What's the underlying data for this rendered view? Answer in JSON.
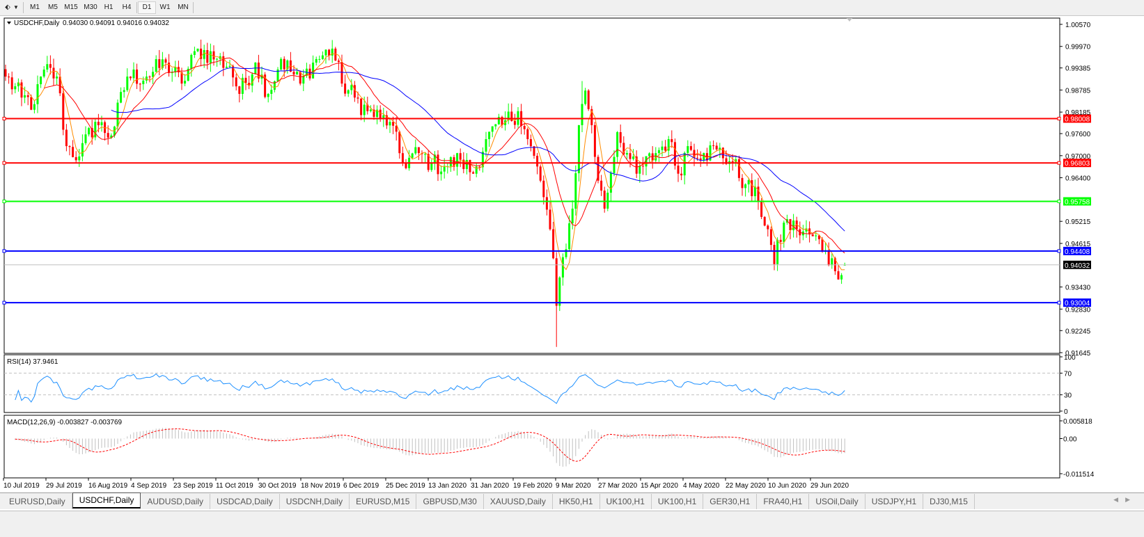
{
  "toolbar": {
    "timeframes": [
      {
        "label": "M1"
      },
      {
        "label": "M5"
      },
      {
        "label": "M15"
      },
      {
        "label": "M30"
      },
      {
        "label": "H1"
      },
      {
        "label": "H4"
      },
      {
        "label": "D1",
        "active": true
      },
      {
        "label": "W1"
      },
      {
        "label": "MN"
      }
    ]
  },
  "chart": {
    "symbol_header": "USDCHF,Daily",
    "ohlc_header": "0.94030 0.94091 0.94016 0.94032",
    "last": {
      "open": 0.9403,
      "high": 0.94091,
      "low": 0.94016,
      "close": 0.94032
    },
    "price_axis_labels": [
      "1.00570",
      "0.99970",
      "0.99385",
      "0.98785",
      "0.98185",
      "0.97600",
      "0.97000",
      "0.96400",
      "0.95215",
      "0.94615",
      "0.93430",
      "0.92830",
      "0.92245",
      "0.91645"
    ],
    "price_range": [
      0.91645,
      1.0057
    ],
    "current_price_label": "0.94032",
    "horizontal_lines": [
      {
        "price": 0.98008,
        "label": "0.98008",
        "color": "#ff0000"
      },
      {
        "price": 0.96803,
        "label": "0.96803",
        "color": "#ff0000"
      },
      {
        "price": 0.95758,
        "label": "0.95758",
        "color": "#00ff00"
      },
      {
        "price": 0.94408,
        "label": "0.94408",
        "color": "#0000ff"
      },
      {
        "price": 0.93004,
        "label": "0.93004",
        "color": "#0000ff"
      }
    ],
    "colors": {
      "bull": "#00ff00",
      "bear": "#ff0000",
      "ma_fast": "#ff8c00",
      "ma_mid": "#ff0000",
      "ma_slow": "#0000ff",
      "rsi": "#1e90ff",
      "macd_hist": "#c0c0c0",
      "macd_signal": "#ff0000"
    },
    "close_path": [
      [
        0,
        0.9915
      ],
      [
        5,
        0.9858
      ],
      [
        9,
        0.984
      ],
      [
        12,
        0.9934
      ],
      [
        16,
        0.9915
      ],
      [
        19,
        0.9726
      ],
      [
        23,
        0.9698
      ],
      [
        28,
        0.9792
      ],
      [
        33,
        0.9755
      ],
      [
        38,
        0.9915
      ],
      [
        44,
        0.9915
      ],
      [
        50,
        0.9953
      ],
      [
        55,
        0.9896
      ],
      [
        60,
        0.9991
      ],
      [
        66,
        0.9963
      ],
      [
        70,
        0.9944
      ],
      [
        73,
        0.9868
      ],
      [
        78,
        0.9953
      ],
      [
        82,
        0.9868
      ],
      [
        86,
        0.9963
      ],
      [
        92,
        0.9896
      ],
      [
        96,
        0.9953
      ],
      [
        102,
        0.9991
      ],
      [
        105,
        0.9896
      ],
      [
        109,
        0.9858
      ],
      [
        113,
        0.9821
      ],
      [
        117,
        0.9802
      ],
      [
        120,
        0.9792
      ],
      [
        124,
        0.9679
      ],
      [
        129,
        0.9707
      ],
      [
        133,
        0.9679
      ],
      [
        137,
        0.967
      ],
      [
        142,
        0.9689
      ],
      [
        146,
        0.9651
      ],
      [
        150,
        0.9745
      ],
      [
        155,
        0.9783
      ],
      [
        160,
        0.9821
      ],
      [
        163,
        0.9745
      ],
      [
        167,
        0.9632
      ],
      [
        170,
        0.95
      ],
      [
        172,
        0.9292
      ],
      [
        174,
        0.9424
      ],
      [
        177,
        0.9556
      ],
      [
        179,
        0.9783
      ],
      [
        181,
        0.9877
      ],
      [
        183,
        0.9783
      ],
      [
        185,
        0.9632
      ],
      [
        187,
        0.9556
      ],
      [
        191,
        0.9764
      ],
      [
        194,
        0.9707
      ],
      [
        197,
        0.9651
      ],
      [
        203,
        0.9707
      ],
      [
        207,
        0.9745
      ],
      [
        210,
        0.9651
      ],
      [
        213,
        0.9726
      ],
      [
        218,
        0.9707
      ],
      [
        222,
        0.9717
      ],
      [
        227,
        0.9679
      ],
      [
        231,
        0.9622
      ],
      [
        235,
        0.9575
      ],
      [
        238,
        0.95
      ],
      [
        240,
        0.9405
      ],
      [
        243,
        0.9518
      ],
      [
        247,
        0.95
      ],
      [
        252,
        0.9481
      ],
      [
        256,
        0.9443
      ],
      [
        259,
        0.9386
      ],
      [
        262,
        0.94032
      ]
    ],
    "x_axis_labels": [
      "10 Jul 2019",
      "29 Jul 2019",
      "16 Aug 2019",
      "4 Sep 2019",
      "23 Sep 2019",
      "11 Oct 2019",
      "30 Oct 2019",
      "18 Nov 2019",
      "6 Dec 2019",
      "25 Dec 2019",
      "13 Jan 2020",
      "31 Jan 2020",
      "19 Feb 2020",
      "9 Mar 2020",
      "27 Mar 2020",
      "15 Apr 2020",
      "4 May 2020",
      "22 May 2020",
      "10 Jun 2020",
      "29 Jun 2020"
    ]
  },
  "rsi": {
    "header": "RSI(14) 37.9461",
    "axis_labels": [
      "100",
      "70",
      "30",
      "0"
    ]
  },
  "macd": {
    "header": "MACD(12,26,9) -0.003827 -0.003769",
    "axis_labels": [
      "0.005818",
      "0.00",
      "-0.011514"
    ],
    "range": [
      -0.011514,
      0.005818
    ]
  },
  "tabs": [
    {
      "label": "EURUSD,Daily"
    },
    {
      "label": "USDCHF,Daily",
      "active": true
    },
    {
      "label": "AUDUSD,Daily"
    },
    {
      "label": "USDCAD,Daily"
    },
    {
      "label": "USDCNH,Daily"
    },
    {
      "label": "EURUSD,M15"
    },
    {
      "label": "GBPUSD,M30"
    },
    {
      "label": "XAUUSD,Daily"
    },
    {
      "label": "HK50,H1"
    },
    {
      "label": "UK100,H1"
    },
    {
      "label": "UK100,H1"
    },
    {
      "label": "GER30,H1"
    },
    {
      "label": "FRA40,H1"
    },
    {
      "label": "USOil,Daily"
    },
    {
      "label": "USDJPY,H1"
    },
    {
      "label": "DJ30,M15"
    }
  ]
}
